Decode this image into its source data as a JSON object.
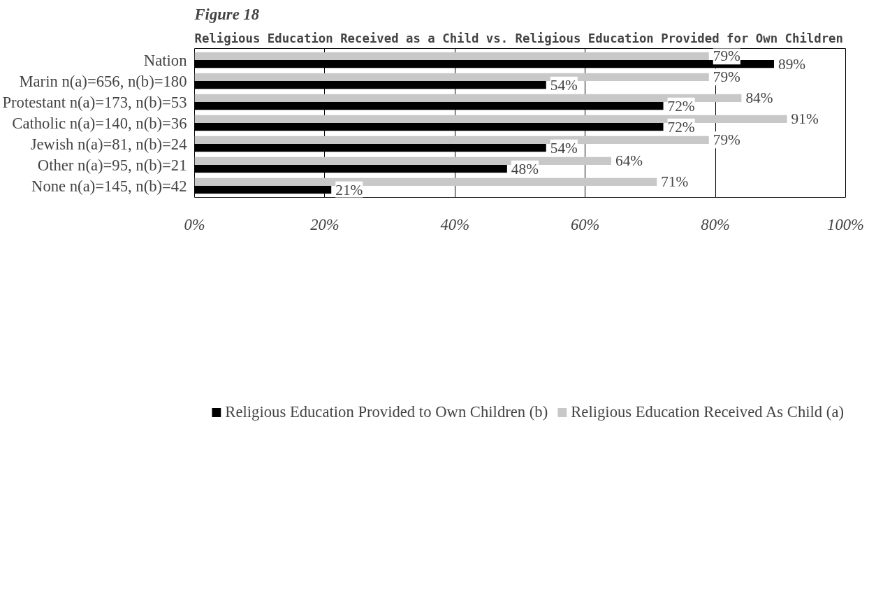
{
  "chart_data": {
    "type": "bar",
    "orientation": "horizontal",
    "title": "Religious Education Received as a Child vs. Religious Education Provided for Own Children",
    "annotations": [
      "Figure 18"
    ],
    "categories": [
      "Nation",
      "Marin n(a)=656, n(b)=180",
      "Protestant n(a)=173, n(b)=53",
      "Catholic n(a)=140, n(b)=36",
      "Jewish n(a)=81, n(b)=24",
      "Other n(a)=95, n(b)=21",
      "None n(a)=145, n(b)=42"
    ],
    "series": [
      {
        "name": "Religious Education Received As Child (a)",
        "color": "#c8c8c8",
        "values": [
          79,
          79,
          84,
          91,
          79,
          64,
          71
        ],
        "value_labels": [
          "79%",
          "79%",
          "84%",
          "91%",
          "79%",
          "64%",
          "71%"
        ]
      },
      {
        "name": "Religious Education Provided to Own Children (b)",
        "color": "#000000",
        "values": [
          89,
          54,
          72,
          72,
          54,
          48,
          21
        ],
        "value_labels": [
          "89%",
          "54%",
          "72%",
          "72%",
          "54%",
          "48%",
          "21%"
        ]
      }
    ],
    "xlim": [
      0,
      100
    ],
    "xticks": [
      {
        "value": 0,
        "label": "0%"
      },
      {
        "value": 20,
        "label": "20%"
      },
      {
        "value": 40,
        "label": "40%"
      },
      {
        "value": 60,
        "label": "60%"
      },
      {
        "value": 80,
        "label": "80%"
      },
      {
        "value": 100,
        "label": "100%"
      }
    ],
    "grid": "x",
    "legend": "bottom"
  }
}
